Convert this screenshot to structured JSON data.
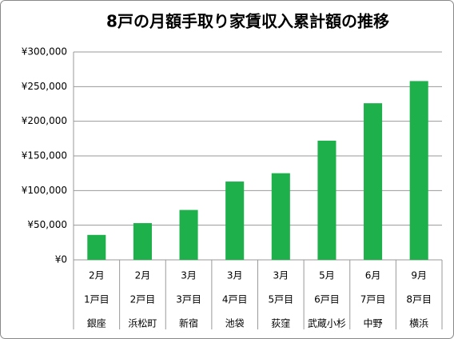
{
  "chart_data": {
    "type": "bar",
    "title": "8戸の月額手取り家賃収入累計額の推移",
    "categories": [
      [
        "2月",
        "1戸目",
        "銀座"
      ],
      [
        "2月",
        "2戸目",
        "浜松町"
      ],
      [
        "3月",
        "3戸目",
        "新宿"
      ],
      [
        "3月",
        "4戸目",
        "池袋"
      ],
      [
        "3月",
        "5戸目",
        "荻窪"
      ],
      [
        "5月",
        "6戸目",
        "武蔵小杉"
      ],
      [
        "6月",
        "7戸目",
        "中野"
      ],
      [
        "9月",
        "8戸目",
        "横浜"
      ]
    ],
    "values": [
      36000,
      53000,
      72000,
      113000,
      125000,
      172000,
      226000,
      258000
    ],
    "color": "#1db04b",
    "ylim": [
      0,
      300000
    ],
    "yticks": [
      {
        "value": 0,
        "label": "¥0"
      },
      {
        "value": 50000,
        "label": "¥50,000"
      },
      {
        "value": 100000,
        "label": "¥100,000"
      },
      {
        "value": 150000,
        "label": "¥150,000"
      },
      {
        "value": 200000,
        "label": "¥200,000"
      },
      {
        "value": 250000,
        "label": "¥250,000"
      },
      {
        "value": 300000,
        "label": "¥300,000"
      }
    ],
    "grid": true
  }
}
